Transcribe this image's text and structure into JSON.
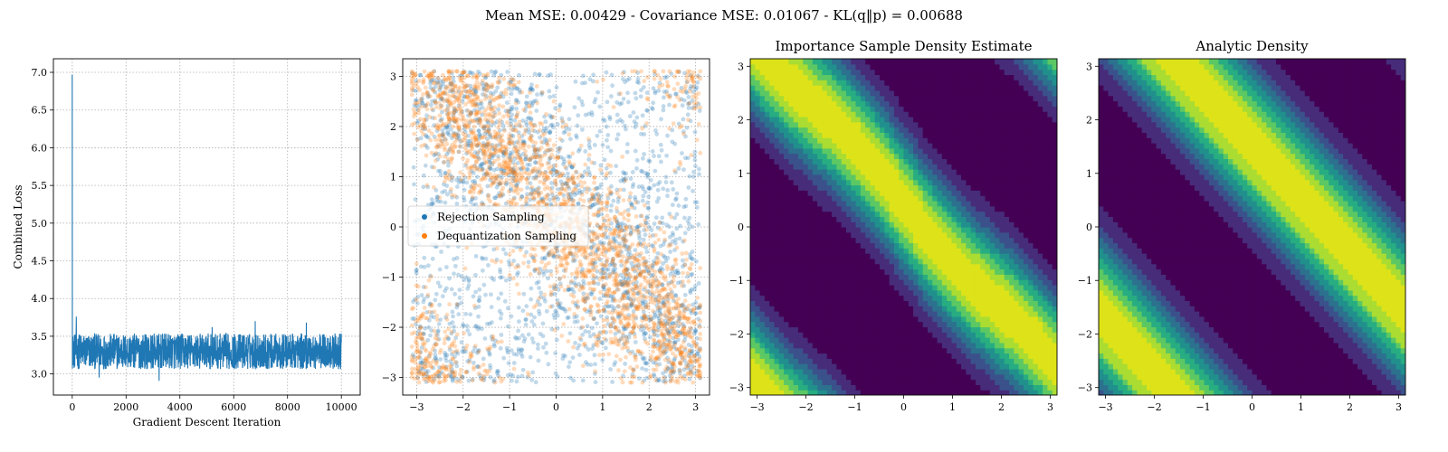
{
  "suptitle": "Mean MSE: 0.00429 - Covariance MSE: 0.01067 - KL(q‖p) = 0.00688",
  "colors": {
    "blue": "#1f77b4",
    "orange": "#ff7f0e",
    "grid": "#b0b0b0"
  },
  "chart_data": [
    {
      "type": "line",
      "title": "",
      "xlabel": "Gradient Descent Iteration",
      "ylabel": "Combined Loss",
      "xlim": [
        -700,
        10700
      ],
      "ylim": [
        2.72,
        7.18
      ],
      "xticks": [
        0,
        2000,
        4000,
        6000,
        8000,
        10000
      ],
      "yticks": [
        3.0,
        3.5,
        4.0,
        4.5,
        5.0,
        5.5,
        6.0,
        6.5,
        7.0
      ],
      "grid": true,
      "series": [
        {
          "color": "#1f77b4",
          "summary": {
            "start": 6.97,
            "band_low": 3.05,
            "band_high": 3.55,
            "mean": 3.3,
            "end_iteration": 10000
          },
          "spikes": [
            [
              0,
              6.97
            ],
            [
              150,
              3.76
            ],
            [
              3230,
              2.91
            ],
            [
              6800,
              3.7
            ],
            [
              8700,
              3.68
            ],
            [
              1000,
              2.95
            ],
            [
              5200,
              3.62
            ]
          ]
        }
      ]
    },
    {
      "type": "scatter",
      "title": "",
      "xlim": [
        -3.3,
        3.3
      ],
      "ylim": [
        -3.35,
        3.35
      ],
      "xticks": [
        -3,
        -2,
        -1,
        0,
        1,
        2,
        3
      ],
      "yticks": [
        -3,
        -2,
        -1,
        0,
        1,
        2,
        3
      ],
      "grid": true,
      "legend": {
        "placement": "center-left",
        "entries": [
          "Rejection Sampling",
          "Dequantization Sampling"
        ]
      },
      "series": [
        {
          "name": "Rejection Sampling",
          "color": "#1f77b4",
          "distribution": "uniform-ish on [-pi,pi]^2 with density along anti-diagonal bands",
          "count_estimate": 5000
        },
        {
          "name": "Dequantization Sampling",
          "color": "#ff7f0e",
          "distribution": "concentrated on anti-diagonal bands y ≈ -x + 0.3 and wrapped corners",
          "count_estimate": 5000
        }
      ]
    },
    {
      "type": "heatmap",
      "title": "Importance Sample Density Estimate",
      "xlim": [
        -3.14,
        3.14
      ],
      "ylim": [
        -3.14,
        3.14
      ],
      "xticks": [
        -3,
        -2,
        -1,
        0,
        1,
        2,
        3
      ],
      "yticks": [
        -3,
        -2,
        -1,
        0,
        1,
        2,
        3
      ],
      "colormap": "viridis",
      "levels": [
        "#440154",
        "#472c7a",
        "#3b518b",
        "#2c718e",
        "#21908d",
        "#27ad81",
        "#5cc863",
        "#aadc32",
        "#dde318"
      ],
      "ridge_line": "x + y ≈ 0.3 (wrapped)"
    },
    {
      "type": "heatmap",
      "title": "Analytic Density",
      "xlim": [
        -3.14,
        3.14
      ],
      "ylim": [
        -3.14,
        3.14
      ],
      "xticks": [
        -3,
        -2,
        -1,
        0,
        1,
        2,
        3
      ],
      "yticks": [
        -3,
        -2,
        -1,
        0,
        1,
        2,
        3
      ],
      "colormap": "viridis",
      "levels": [
        "#440154",
        "#472c7a",
        "#3b518b",
        "#2c718e",
        "#21908d",
        "#27ad81",
        "#5cc863",
        "#aadc32",
        "#dde318"
      ],
      "ridge_line": "x + y ≈ 1.5 (wrapped)"
    }
  ]
}
